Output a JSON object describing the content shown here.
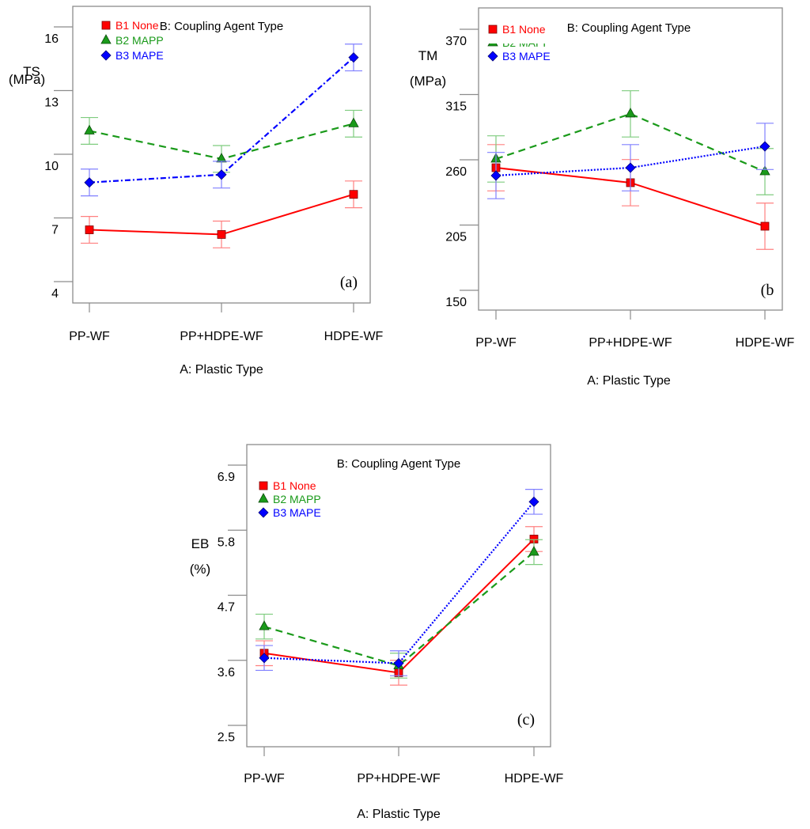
{
  "chart_data": [
    {
      "id": "a",
      "type": "line",
      "panel_label": "(a)",
      "legend_title": "B: Coupling Agent Type",
      "ylabel": "TS",
      "ylabel_unit": "(MPa)",
      "xlabel": "A: Plastic Type",
      "categories": [
        "PP-WF",
        "PP+HDPE-WF",
        "HDPE-WF"
      ],
      "yticks": [
        4,
        7,
        10,
        13,
        16
      ],
      "ylim": [
        3.2,
        17.0
      ],
      "legend_position": "top-left",
      "series": [
        {
          "name": "B1 None",
          "marker": "square",
          "line": "solid",
          "color": "#ff0000",
          "errcolor": "#ff8080",
          "values": [
            6.44,
            6.22,
            8.11
          ],
          "error": [
            0.63,
            0.63,
            0.63
          ]
        },
        {
          "name": "B2 MAPP",
          "marker": "triangle",
          "line": "dashed",
          "color": "#1a9a1a",
          "errcolor": "#7fcc7f",
          "values": [
            11.1,
            9.78,
            11.44
          ],
          "error": [
            0.63,
            0.63,
            0.63
          ]
        },
        {
          "name": "B3 MAPE",
          "marker": "diamond",
          "line": "dashdot",
          "color": "#0000ff",
          "errcolor": "#8080ff",
          "values": [
            8.67,
            9.04,
            14.56
          ],
          "error": [
            0.63,
            0.63,
            0.63
          ]
        }
      ]
    },
    {
      "id": "b",
      "type": "line",
      "panel_label": "(b",
      "legend_title": "B: Coupling Agent Type",
      "ylabel": "TM",
      "ylabel_unit": "(MPa)",
      "xlabel": "A: Plastic Type",
      "categories": [
        "PP-WF",
        "PP+HDPE-WF",
        "HDPE-WF"
      ],
      "yticks": [
        150,
        205,
        260,
        315,
        370
      ],
      "ylim": [
        133,
        389
      ],
      "legend_position": "top-left",
      "series": [
        {
          "name": "B1 None",
          "marker": "square",
          "line": "solid",
          "color": "#ff0000",
          "errcolor": "#ff8080",
          "values": [
            253.3,
            240.7,
            204.0
          ],
          "error": [
            19.5,
            19.5,
            19.5
          ]
        },
        {
          "name": "B2 MAPP",
          "marker": "triangle",
          "line": "dashed",
          "color": "#1a9a1a",
          "errcolor": "#7fcc7f",
          "values": [
            260.7,
            298.7,
            250.0
          ],
          "error": [
            19.5,
            19.5,
            19.5
          ]
        },
        {
          "name": "B3 MAPE",
          "marker": "diamond",
          "line": "dotted",
          "color": "#0000ff",
          "errcolor": "#8080ff",
          "values": [
            246.7,
            253.3,
            271.3
          ],
          "error": [
            19.5,
            19.5,
            19.5
          ]
        }
      ]
    },
    {
      "id": "c",
      "type": "line",
      "panel_label": "(c)",
      "legend_title": "B: Coupling Agent Type",
      "ylabel": "EB",
      "ylabel_unit": "(%)",
      "xlabel": "A: Plastic Type",
      "categories": [
        "PP-WF",
        "PP+HDPE-WF",
        "HDPE-WF"
      ],
      "yticks": [
        2.5,
        3.6,
        4.7,
        5.8,
        6.9
      ],
      "ylim": [
        2.14,
        7.26
      ],
      "legend_position": "top-left",
      "series": [
        {
          "name": "B1 None",
          "marker": "square",
          "line": "solid",
          "color": "#ff0000",
          "errcolor": "#ff8080",
          "values": [
            3.72,
            3.39,
            5.65
          ],
          "error": [
            0.21,
            0.21,
            0.21
          ]
        },
        {
          "name": "B2 MAPP",
          "marker": "triangle",
          "line": "dashed",
          "color": "#1a9a1a",
          "errcolor": "#7fcc7f",
          "values": [
            4.17,
            3.51,
            5.43
          ],
          "error": [
            0.21,
            0.21,
            0.21
          ]
        },
        {
          "name": "B3 MAPE",
          "marker": "diamond",
          "line": "dotted",
          "color": "#0000ff",
          "errcolor": "#8080ff",
          "values": [
            3.64,
            3.55,
            6.28
          ],
          "error": [
            0.21,
            0.21,
            0.21
          ]
        }
      ]
    }
  ]
}
